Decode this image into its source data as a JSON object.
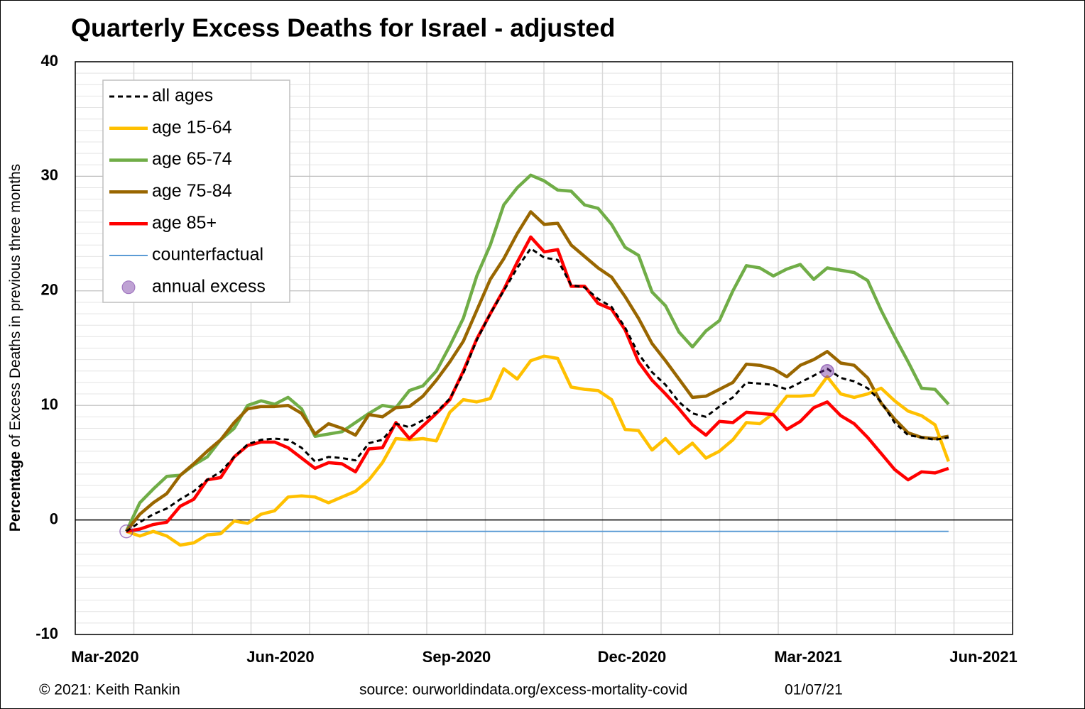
{
  "chart_data": {
    "type": "line",
    "title": "Quarterly Excess Deaths for Israel - adjusted",
    "ylabel_bold": "Percentage",
    "ylabel_rest": "of Excess Deaths in previous three months",
    "footer_left": "© 2021: Keith Rankin",
    "footer_source": "source: ourworldindata.org/excess-mortality-covid",
    "footer_date": "01/07/21",
    "x": [
      0,
      1,
      2,
      3,
      4,
      5,
      6,
      7,
      8,
      9,
      10,
      11,
      12,
      13,
      14,
      15,
      16,
      17,
      18,
      19,
      20,
      21,
      22,
      23,
      24,
      25,
      26,
      27,
      28,
      29,
      30,
      31,
      32,
      33,
      34,
      35,
      36,
      37,
      38,
      39,
      40,
      41,
      42,
      43,
      44,
      45,
      46,
      47,
      48,
      49,
      50,
      51,
      52,
      53,
      54,
      55,
      56,
      57,
      58,
      59,
      60,
      61
    ],
    "xlim": [
      -3.79,
      65.75
    ],
    "xticks": [
      {
        "value": -1.58,
        "label": "Mar-2020"
      },
      {
        "value": 11.43,
        "label": "Jun-2020"
      },
      {
        "value": 24.5,
        "label": "Sep-2020"
      },
      {
        "value": 37.51,
        "label": "Dec-2020"
      },
      {
        "value": 50.58,
        "label": "Mar-2021"
      },
      {
        "value": 63.59,
        "label": "Jun-2021"
      }
    ],
    "ylim": [
      -10,
      40
    ],
    "yticks": [
      -10,
      0,
      10,
      20,
      30,
      40
    ],
    "grid": true,
    "legend": "top-left",
    "series": [
      {
        "name": "all ages",
        "color": "#000000",
        "dash": true,
        "values": [
          -1,
          -0.2,
          0.5,
          1.0,
          1.8,
          2.5,
          3.5,
          4.2,
          5.5,
          6.6,
          7.0,
          7.1,
          7.0,
          6.3,
          5.1,
          5.5,
          5.4,
          5.2,
          6.7,
          7.0,
          8.4,
          8.1,
          8.7,
          9.4,
          10.6,
          12.8,
          15.7,
          18.0,
          20.0,
          22.0,
          23.7,
          22.9,
          22.7,
          20.5,
          20.3,
          19.3,
          18.6,
          16.8,
          14.5,
          12.9,
          11.8,
          10.3,
          9.3,
          9.0,
          9.9,
          10.7,
          12.0,
          11.9,
          11.8,
          11.4,
          12.0,
          12.6,
          13.2,
          12.4,
          12.1,
          11.5,
          10.3,
          8.5,
          7.4,
          7.2,
          7.0,
          7.2
        ]
      },
      {
        "name": "age 15-64",
        "color": "#ffc000",
        "values": [
          -1,
          -1.4,
          -1.0,
          -1.4,
          -2.2,
          -2.0,
          -1.3,
          -1.2,
          -0.1,
          -0.3,
          0.5,
          0.8,
          2.0,
          2.1,
          2.0,
          1.5,
          2.0,
          2.5,
          3.5,
          5.0,
          7.1,
          7.0,
          7.1,
          6.9,
          9.4,
          10.5,
          10.3,
          10.6,
          13.2,
          12.3,
          13.9,
          14.3,
          14.1,
          11.6,
          11.4,
          11.3,
          10.5,
          7.9,
          7.8,
          6.1,
          7.1,
          5.8,
          6.7,
          5.4,
          6.0,
          7.0,
          8.5,
          8.4,
          9.3,
          10.8,
          10.8,
          10.9,
          12.5,
          11.0,
          10.7,
          11.0,
          11.5,
          10.4,
          9.5,
          9.1,
          8.3,
          5.1
        ]
      },
      {
        "name": "age 65-74",
        "color": "#70ad47",
        "values": [
          -1,
          1.5,
          2.7,
          3.8,
          3.9,
          4.8,
          5.5,
          7.0,
          8.0,
          10.0,
          10.4,
          10.1,
          10.7,
          9.7,
          7.3,
          7.5,
          7.7,
          8.5,
          9.3,
          10.0,
          9.8,
          11.3,
          11.7,
          13.0,
          15.2,
          17.6,
          21.3,
          24.0,
          27.5,
          29.0,
          30.1,
          29.6,
          28.8,
          28.7,
          27.5,
          27.2,
          25.8,
          23.8,
          23.1,
          19.9,
          18.7,
          16.4,
          15.1,
          16.5,
          17.4,
          20.0,
          22.2,
          22.0,
          21.3,
          21.9,
          22.3,
          21.0,
          22.0,
          21.8,
          21.6,
          20.9,
          18.3,
          16.0,
          13.8,
          11.5,
          11.4,
          10.1
        ]
      },
      {
        "name": "age 75-84",
        "color": "#996600",
        "values": [
          -1,
          0.5,
          1.5,
          2.3,
          3.9,
          4.9,
          6.0,
          7.0,
          8.5,
          9.7,
          9.9,
          9.9,
          10.0,
          9.3,
          7.5,
          8.4,
          8.0,
          7.4,
          9.2,
          9.0,
          9.8,
          9.9,
          10.8,
          12.2,
          13.8,
          15.6,
          18.3,
          21.0,
          22.8,
          25.0,
          26.9,
          25.8,
          25.9,
          24.0,
          23.0,
          22.0,
          21.2,
          19.5,
          17.6,
          15.4,
          13.9,
          12.3,
          10.7,
          10.8,
          11.4,
          12.0,
          13.6,
          13.5,
          13.2,
          12.5,
          13.5,
          14.0,
          14.7,
          13.7,
          13.5,
          12.4,
          10.2,
          8.8,
          7.6,
          7.2,
          7.1,
          7.3
        ]
      },
      {
        "name": "age 85+",
        "color": "#ff0000",
        "values": [
          -1,
          -0.8,
          -0.4,
          -0.2,
          1.2,
          1.8,
          3.5,
          3.7,
          5.5,
          6.5,
          6.8,
          6.8,
          6.3,
          5.4,
          4.5,
          5.0,
          4.9,
          4.2,
          6.2,
          6.3,
          8.5,
          7.1,
          8.2,
          9.3,
          10.5,
          13.0,
          15.8,
          18.0,
          20.1,
          22.5,
          24.7,
          23.4,
          23.6,
          20.4,
          20.4,
          18.9,
          18.4,
          16.6,
          13.8,
          12.2,
          11.0,
          9.7,
          8.3,
          7.4,
          8.6,
          8.5,
          9.4,
          9.3,
          9.2,
          7.9,
          8.6,
          9.8,
          10.3,
          9.1,
          8.4,
          7.2,
          5.8,
          4.4,
          3.5,
          4.2,
          4.1,
          4.5
        ]
      },
      {
        "name": "counterfactual",
        "color": "#5b9bd5",
        "thin": true,
        "values": [
          -1,
          -1,
          -1,
          -1,
          -1,
          -1,
          -1,
          -1,
          -1,
          -1,
          -1,
          -1,
          -1,
          -1,
          -1,
          -1,
          -1,
          -1,
          -1,
          -1,
          -1,
          -1,
          -1,
          -1,
          -1,
          -1,
          -1,
          -1,
          -1,
          -1,
          -1,
          -1,
          -1,
          -1,
          -1,
          -1,
          -1,
          -1,
          -1,
          -1,
          -1,
          -1,
          -1,
          -1,
          -1,
          -1,
          -1,
          -1,
          -1,
          -1,
          -1,
          -1,
          -1,
          -1,
          -1,
          -1,
          -1,
          -1,
          -1,
          -1,
          -1,
          -1
        ]
      },
      {
        "name": "annual excess",
        "color": "#7030a0",
        "points": true,
        "x": [
          0,
          52
        ],
        "values": [
          -1,
          13
        ]
      }
    ]
  }
}
